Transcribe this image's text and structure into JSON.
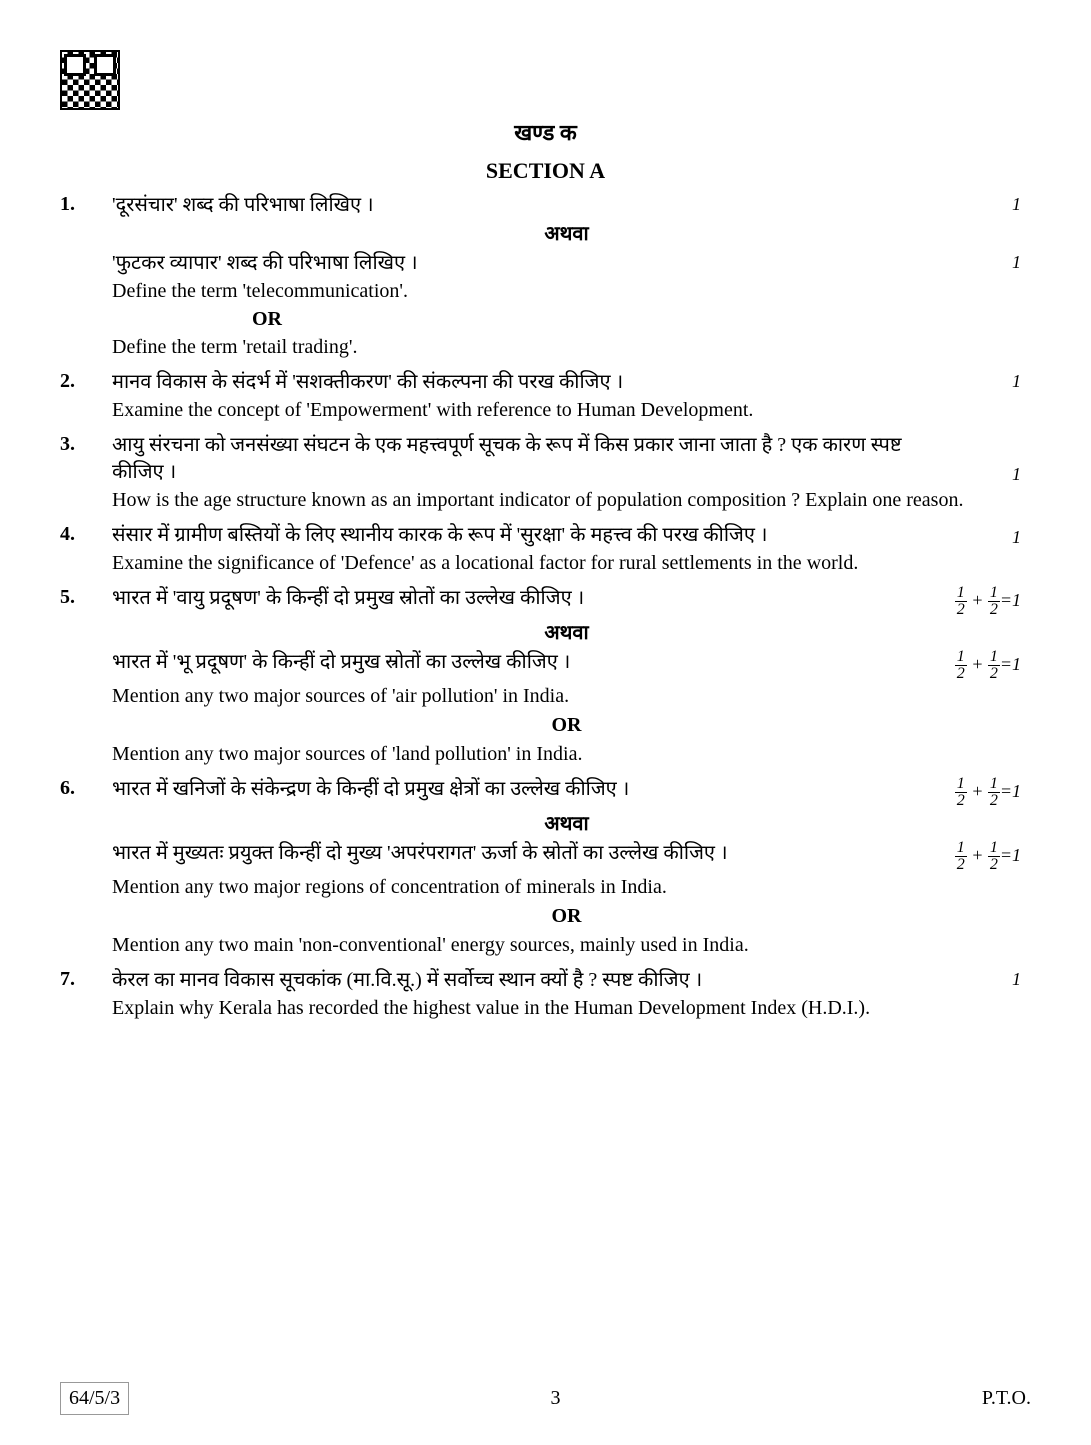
{
  "header": {
    "section_hindi": "खण्ड क",
    "section_english": "SECTION A"
  },
  "questions": [
    {
      "num": "1.",
      "lines": [
        {
          "text": "'दूरसंचार' शब्द की परिभाषा लिखिए ।",
          "marks": "1"
        },
        {
          "text": "अथवा",
          "type": "athava-center"
        },
        {
          "text": "'फुटकर व्यापार' शब्द की परिभाषा लिखिए ।",
          "marks": "1"
        },
        {
          "text": "Define the term 'telecommunication'."
        },
        {
          "text": "OR",
          "type": "or-left"
        },
        {
          "text": "Define the term 'retail trading'."
        }
      ]
    },
    {
      "num": "2.",
      "lines": [
        {
          "text": "मानव विकास के संदर्भ में 'सशक्तीकरण' की संकल्पना की परख कीजिए ।",
          "marks": "1"
        },
        {
          "text": "Examine the concept of 'Empowerment' with reference to Human Development.",
          "justify": true
        }
      ]
    },
    {
      "num": "3.",
      "lines": [
        {
          "text": "आयु संरचना को जनसंख्या संघटन के एक महत्त्वपूर्ण सूचक के रूप में किस प्रकार जाना जाता है ? एक कारण स्पष्ट कीजिए ।",
          "marks": "1",
          "marksAlignBottom": true
        },
        {
          "text": "How is the age structure known as an important indicator of population composition ? Explain one reason."
        }
      ]
    },
    {
      "num": "4.",
      "lines": [
        {
          "text": "संसार में ग्रामीण बस्तियों के लिए स्थानीय कारक के रूप में 'सुरक्षा' के महत्त्व की परख कीजिए ।",
          "marks": "1",
          "marksAlignBottom": true
        },
        {
          "text": "Examine the significance of 'Defence' as a locational factor for rural settlements in the world.",
          "justify": true
        }
      ]
    },
    {
      "num": "5.",
      "lines": [
        {
          "text": "भारत में 'वायु प्रदूषण' के किन्हीं दो प्रमुख स्रोतों का उल्लेख कीजिए ।",
          "marks_frac": true
        },
        {
          "text": "अथवा",
          "type": "athava-center"
        },
        {
          "text": "भारत में 'भू प्रदूषण' के किन्हीं दो प्रमुख स्रोतों का उल्लेख कीजिए ।",
          "marks_frac": true
        },
        {
          "text": "Mention any two major sources of 'air pollution' in India."
        },
        {
          "text": "OR",
          "type": "or-center"
        },
        {
          "text": "Mention any two major sources of 'land pollution' in India."
        }
      ]
    },
    {
      "num": "6.",
      "lines": [
        {
          "text": "भारत में खनिजों के संकेन्द्रण के किन्हीं दो प्रमुख क्षेत्रों का उल्लेख कीजिए ।",
          "marks_frac": true
        },
        {
          "text": "अथवा",
          "type": "athava-center"
        },
        {
          "text": "भारत में मुख्यतः प्रयुक्त किन्हीं दो मुख्य 'अपरंपरागत' ऊर्जा के स्रोतों का उल्लेख कीजिए ।",
          "marks_frac": true
        },
        {
          "text": "Mention any two major regions of concentration of minerals in India."
        },
        {
          "text": "OR",
          "type": "or-center"
        },
        {
          "text": "Mention any two main 'non-conventional' energy sources, mainly used in India."
        }
      ]
    },
    {
      "num": "7.",
      "lines": [
        {
          "text": "केरल का मानव विकास सूचकांक (मा.वि.सू.) में सर्वोच्च स्थान क्यों है ? स्पष्ट कीजिए ।",
          "marks": "1"
        },
        {
          "text": "Explain why Kerala has recorded the highest value in the Human Development Index (H.D.I.).",
          "justify": true
        }
      ]
    }
  ],
  "footer": {
    "code": "64/5/3",
    "page": "3",
    "pto": "P.T.O."
  },
  "labels": {
    "frac_n": "1",
    "frac_d": "2",
    "eq": "=1"
  }
}
